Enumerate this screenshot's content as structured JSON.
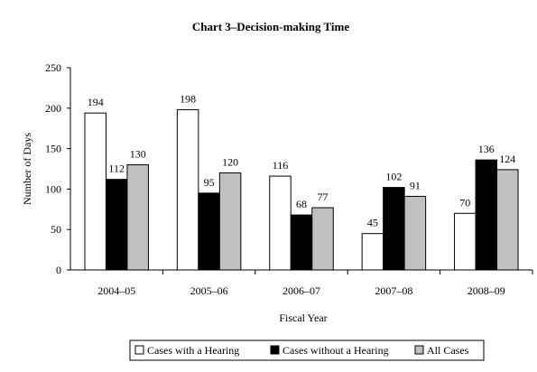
{
  "chart_data": {
    "type": "bar",
    "title": "Chart 3–Decision-making Time",
    "xlabel": "Fiscal Year",
    "ylabel": "Number of Days",
    "ylim": [
      0,
      250
    ],
    "yticks": [
      0,
      50,
      100,
      150,
      200,
      250
    ],
    "grid": false,
    "legend_position": "bottom",
    "categories": [
      "2004–05",
      "2005–06",
      "2006–07",
      "2007–08",
      "2008–09"
    ],
    "series": [
      {
        "name": "Cases with a Hearing",
        "values": [
          194,
          198,
          116,
          45,
          70
        ],
        "color": "#ffffff"
      },
      {
        "name": "Cases without a Hearing",
        "values": [
          112,
          95,
          68,
          102,
          136
        ],
        "color": "#000000"
      },
      {
        "name": "All Cases",
        "values": [
          130,
          120,
          77,
          91,
          124
        ],
        "color": "#c0c0c0"
      }
    ]
  }
}
